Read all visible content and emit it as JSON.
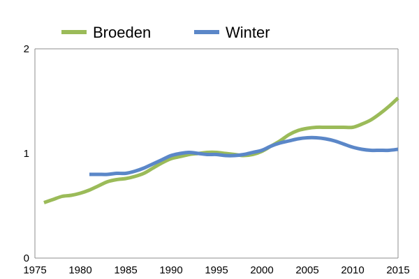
{
  "chart_data": {
    "type": "line",
    "title": "",
    "xlabel": "",
    "ylabel": "",
    "xlim": [
      1975,
      2015
    ],
    "ylim": [
      0,
      2
    ],
    "x_ticks": [
      "1975",
      "1980",
      "1985",
      "1990",
      "1995",
      "2000",
      "2005",
      "2010",
      "2015"
    ],
    "y_ticks": [
      "0",
      "1",
      "2"
    ],
    "grid": false,
    "legend_position": "top",
    "series": [
      {
        "name": "Broeden",
        "color": "#9BBB59",
        "x": [
          1976,
          1977,
          1978,
          1979,
          1980,
          1981,
          1982,
          1983,
          1984,
          1985,
          1986,
          1987,
          1988,
          1989,
          1990,
          1991,
          1992,
          1993,
          1994,
          1995,
          1996,
          1997,
          1998,
          1999,
          2000,
          2001,
          2002,
          2003,
          2004,
          2005,
          2006,
          2007,
          2008,
          2009,
          2010,
          2011,
          2012,
          2013,
          2014,
          2015
        ],
        "y": [
          0.53,
          0.56,
          0.59,
          0.6,
          0.62,
          0.65,
          0.69,
          0.73,
          0.75,
          0.76,
          0.78,
          0.81,
          0.86,
          0.91,
          0.95,
          0.97,
          0.99,
          1.0,
          1.01,
          1.01,
          1.0,
          0.99,
          0.98,
          0.99,
          1.02,
          1.07,
          1.12,
          1.18,
          1.22,
          1.24,
          1.25,
          1.25,
          1.25,
          1.25,
          1.25,
          1.28,
          1.32,
          1.38,
          1.45,
          1.53
        ]
      },
      {
        "name": "Winter",
        "color": "#5B87C8",
        "x": [
          1981,
          1982,
          1983,
          1984,
          1985,
          1986,
          1987,
          1988,
          1989,
          1990,
          1991,
          1992,
          1993,
          1994,
          1995,
          1996,
          1997,
          1998,
          1999,
          2000,
          2001,
          2002,
          2003,
          2004,
          2005,
          2006,
          2007,
          2008,
          2009,
          2010,
          2011,
          2012,
          2013,
          2014,
          2015
        ],
        "y": [
          0.8,
          0.8,
          0.8,
          0.81,
          0.81,
          0.83,
          0.86,
          0.9,
          0.94,
          0.98,
          1.0,
          1.01,
          1.0,
          0.99,
          0.99,
          0.98,
          0.98,
          0.99,
          1.01,
          1.03,
          1.07,
          1.1,
          1.12,
          1.14,
          1.15,
          1.15,
          1.14,
          1.12,
          1.09,
          1.06,
          1.04,
          1.03,
          1.03,
          1.03,
          1.04
        ]
      }
    ]
  }
}
